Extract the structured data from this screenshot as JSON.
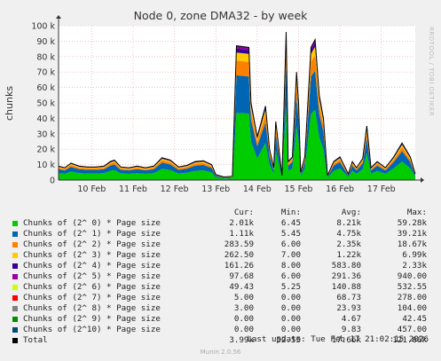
{
  "title": "Node 0, zone DMA32 - by week",
  "ylabel": "chunks",
  "side_text": "RRDTOOL / TOBI OETIKER",
  "footer": "Munin 2.0.56",
  "last_update": "Last update: Tue Feb 17 21:02:15 2026",
  "legend_headers": {
    "cur": "Cur:",
    "min": "Min:",
    "avg": "Avg:",
    "max": "Max:"
  },
  "legend": [
    {
      "name": "Chunks of (2^ 0) * Page size",
      "color": "#00cc00",
      "cur": "2.01k",
      "min": "6.45",
      "avg": "8.21k",
      "max": "59.28k"
    },
    {
      "name": "Chunks of (2^ 1) * Page size",
      "color": "#0066b3",
      "cur": "1.11k",
      "min": "5.45",
      "avg": "4.75k",
      "max": "39.21k"
    },
    {
      "name": "Chunks of (2^ 2) * Page size",
      "color": "#ff8000",
      "cur": "283.59",
      "min": "6.00",
      "avg": "2.35k",
      "max": "18.67k"
    },
    {
      "name": "Chunks of (2^ 3) * Page size",
      "color": "#ffcc00",
      "cur": "262.50",
      "min": "7.00",
      "avg": "1.22k",
      "max": "6.99k"
    },
    {
      "name": "Chunks of (2^ 4) * Page size",
      "color": "#330099",
      "cur": "161.26",
      "min": "8.00",
      "avg": "583.80",
      "max": "2.33k"
    },
    {
      "name": "Chunks of (2^ 5) * Page size",
      "color": "#990099",
      "cur": "97.68",
      "min": "6.00",
      "avg": "291.36",
      "max": "940.00"
    },
    {
      "name": "Chunks of (2^ 6) * Page size",
      "color": "#ccff00",
      "cur": "49.43",
      "min": "5.25",
      "avg": "140.88",
      "max": "532.55"
    },
    {
      "name": "Chunks of (2^ 7) * Page size",
      "color": "#ff0000",
      "cur": "5.00",
      "min": "0.00",
      "avg": "68.73",
      "max": "278.00"
    },
    {
      "name": "Chunks of (2^ 8) * Page size",
      "color": "#808080",
      "cur": "3.00",
      "min": "0.00",
      "avg": "23.93",
      "max": "104.00"
    },
    {
      "name": "Chunks of (2^ 9) * Page size",
      "color": "#008f00",
      "cur": "0.00",
      "min": "0.00",
      "avg": "4.67",
      "max": "42.45"
    },
    {
      "name": "Chunks of (2^10) * Page size",
      "color": "#00487d",
      "cur": "0.00",
      "min": "0.00",
      "avg": "9.83",
      "max": "457.00"
    },
    {
      "name": "Total",
      "color": "#000000",
      "cur": "3.99k",
      "min": "52.55",
      "avg": "17.66k",
      "max": "121.66k"
    }
  ],
  "chart_data": {
    "type": "area",
    "stacked": true,
    "x_tick_labels": [
      "10 Feb",
      "11 Feb",
      "12 Feb",
      "13 Feb",
      "14 Feb",
      "15 Feb",
      "16 Feb",
      "17 Feb"
    ],
    "x_range_days": [
      9.2,
      17.82
    ],
    "y_tick_labels": [
      "0",
      "10 k",
      "20 k",
      "30 k",
      "40 k",
      "50 k",
      "60 k",
      "70 k",
      "80 k",
      "90 k",
      "100 k"
    ],
    "ylim": [
      0,
      100000
    ],
    "grid": true,
    "series_order": [
      "Chunks of (2^ 0) * Page size",
      "Chunks of (2^ 1) * Page size",
      "Chunks of (2^ 2) * Page size",
      "Chunks of (2^ 3) * Page size",
      "Chunks of (2^ 4) * Page size",
      "Chunks of (2^ 5) * Page size"
    ],
    "total_profile": [
      [
        9.2,
        9000
      ],
      [
        9.35,
        8000
      ],
      [
        9.5,
        11000
      ],
      [
        9.7,
        9000
      ],
      [
        9.9,
        8500
      ],
      [
        10.1,
        8500
      ],
      [
        10.3,
        9000
      ],
      [
        10.45,
        12000
      ],
      [
        10.55,
        13000
      ],
      [
        10.7,
        8500
      ],
      [
        10.9,
        8000
      ],
      [
        11.1,
        9000
      ],
      [
        11.3,
        8000
      ],
      [
        11.5,
        9000
      ],
      [
        11.7,
        14500
      ],
      [
        11.9,
        13000
      ],
      [
        12.1,
        8500
      ],
      [
        12.3,
        9500
      ],
      [
        12.5,
        12000
      ],
      [
        12.7,
        12500
      ],
      [
        12.9,
        10000
      ],
      [
        13.0,
        3500
      ],
      [
        13.2,
        2000
      ],
      [
        13.4,
        2500
      ],
      [
        13.5,
        87000
      ],
      [
        13.8,
        86000
      ],
      [
        13.85,
        50000
      ],
      [
        14.0,
        28000
      ],
      [
        14.2,
        48000
      ],
      [
        14.3,
        20000
      ],
      [
        14.4,
        8000
      ],
      [
        14.45,
        38000
      ],
      [
        14.5,
        26000
      ],
      [
        14.6,
        3000
      ],
      [
        14.7,
        96000
      ],
      [
        14.75,
        12000
      ],
      [
        14.85,
        15000
      ],
      [
        14.95,
        70000
      ],
      [
        15.0,
        50000
      ],
      [
        15.05,
        5000
      ],
      [
        15.15,
        15000
      ],
      [
        15.3,
        86000
      ],
      [
        15.4,
        91000
      ],
      [
        15.5,
        55000
      ],
      [
        15.6,
        40000
      ],
      [
        15.7,
        3000
      ],
      [
        15.85,
        12000
      ],
      [
        16.0,
        15000
      ],
      [
        16.2,
        4000
      ],
      [
        16.3,
        12000
      ],
      [
        16.4,
        8000
      ],
      [
        16.55,
        14000
      ],
      [
        16.65,
        35000
      ],
      [
        16.75,
        8000
      ],
      [
        16.9,
        12000
      ],
      [
        17.1,
        8000
      ],
      [
        17.3,
        15000
      ],
      [
        17.5,
        24000
      ],
      [
        17.7,
        15000
      ],
      [
        17.82,
        4000
      ]
    ],
    "series_fractions": [
      0.5,
      0.28,
      0.11,
      0.06,
      0.03,
      0.02
    ]
  }
}
